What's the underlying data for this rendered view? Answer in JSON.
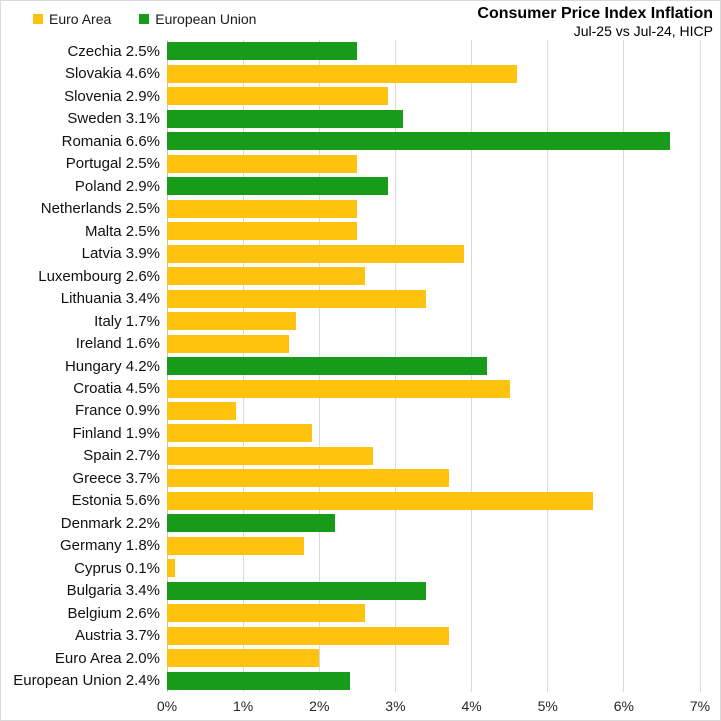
{
  "header": {
    "title": "Consumer Price Index Inflation",
    "subtitle": "Jul-25 vs Jul-24, HICP"
  },
  "legend": [
    {
      "key": "euro_area",
      "label": "Euro Area",
      "color": "#FFC20E",
      "swatch_icon": "square-swatch-icon"
    },
    {
      "key": "european_union",
      "label": "European Union",
      "color": "#189B18",
      "swatch_icon": "square-swatch-icon"
    }
  ],
  "chart_data": {
    "type": "bar",
    "orientation": "horizontal",
    "title": "Consumer Price Index Inflation",
    "subtitle": "Jul-25 vs Jul-24, HICP",
    "unit": "%",
    "xlim": [
      0,
      7
    ],
    "x_ticks": [
      "0%",
      "1%",
      "2%",
      "3%",
      "4%",
      "5%",
      "6%",
      "7%"
    ],
    "grid": true,
    "legend_position": "top-left",
    "colors": {
      "euro_area": "#FFC20E",
      "european_union": "#189B18"
    },
    "bars": [
      {
        "label": "Czechia",
        "value": 2.5,
        "group": "european_union"
      },
      {
        "label": "Slovakia",
        "value": 4.6,
        "group": "euro_area"
      },
      {
        "label": "Slovenia",
        "value": 2.9,
        "group": "euro_area"
      },
      {
        "label": "Sweden",
        "value": 3.1,
        "group": "european_union"
      },
      {
        "label": "Romania",
        "value": 6.6,
        "group": "european_union"
      },
      {
        "label": "Portugal",
        "value": 2.5,
        "group": "euro_area"
      },
      {
        "label": "Poland",
        "value": 2.9,
        "group": "european_union"
      },
      {
        "label": "Netherlands",
        "value": 2.5,
        "group": "euro_area"
      },
      {
        "label": "Malta",
        "value": 2.5,
        "group": "euro_area"
      },
      {
        "label": "Latvia",
        "value": 3.9,
        "group": "euro_area"
      },
      {
        "label": "Luxembourg",
        "value": 2.6,
        "group": "euro_area"
      },
      {
        "label": "Lithuania",
        "value": 3.4,
        "group": "euro_area"
      },
      {
        "label": "Italy",
        "value": 1.7,
        "group": "euro_area"
      },
      {
        "label": "Ireland",
        "value": 1.6,
        "group": "euro_area"
      },
      {
        "label": "Hungary",
        "value": 4.2,
        "group": "european_union"
      },
      {
        "label": "Croatia",
        "value": 4.5,
        "group": "euro_area"
      },
      {
        "label": "France",
        "value": 0.9,
        "group": "euro_area"
      },
      {
        "label": "Finland",
        "value": 1.9,
        "group": "euro_area"
      },
      {
        "label": "Spain",
        "value": 2.7,
        "group": "euro_area"
      },
      {
        "label": "Greece",
        "value": 3.7,
        "group": "euro_area"
      },
      {
        "label": "Estonia",
        "value": 5.6,
        "group": "euro_area"
      },
      {
        "label": "Denmark",
        "value": 2.2,
        "group": "european_union"
      },
      {
        "label": "Germany",
        "value": 1.8,
        "group": "euro_area"
      },
      {
        "label": "Cyprus",
        "value": 0.1,
        "group": "euro_area"
      },
      {
        "label": "Bulgaria",
        "value": 3.4,
        "group": "european_union"
      },
      {
        "label": "Belgium",
        "value": 2.6,
        "group": "euro_area"
      },
      {
        "label": "Austria",
        "value": 3.7,
        "group": "euro_area"
      },
      {
        "label": "Euro Area",
        "value": 2.0,
        "group": "euro_area"
      },
      {
        "label": "European Union",
        "value": 2.4,
        "group": "european_union"
      }
    ]
  }
}
